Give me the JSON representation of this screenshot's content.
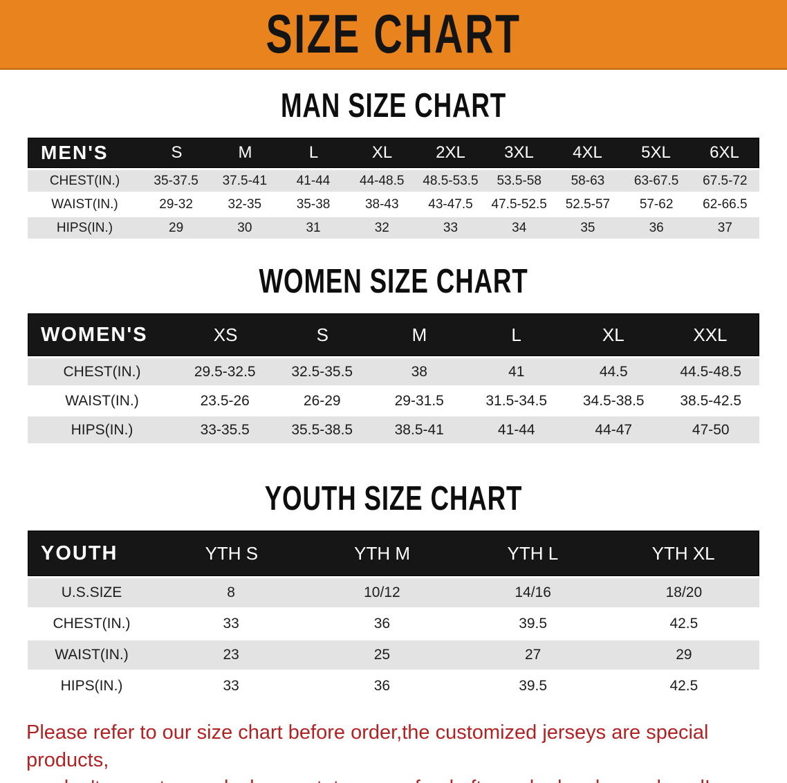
{
  "banner": {
    "title": "SIZE CHART"
  },
  "colors": {
    "banner_orange": "#E8831E",
    "table_header_black": "#161616",
    "row_stripe_gray": "#E3E3E3",
    "note_red": "#B22222"
  },
  "sections": [
    {
      "id": "men",
      "heading": "MAN SIZE CHART",
      "table": {
        "header_label": "MEN'S",
        "columns": [
          "S",
          "M",
          "L",
          "XL",
          "2XL",
          "3XL",
          "4XL",
          "5XL",
          "6XL"
        ],
        "rows": [
          {
            "label": "CHEST(IN.)",
            "shade": "gray",
            "values": [
              "35-37.5",
              "37.5-41",
              "41-44",
              "44-48.5",
              "48.5-53.5",
              "53.5-58",
              "58-63",
              "63-67.5",
              "67.5-72"
            ]
          },
          {
            "label": "WAIST(IN.)",
            "shade": "white",
            "values": [
              "29-32",
              "32-35",
              "35-38",
              "38-43",
              "43-47.5",
              "47.5-52.5",
              "52.5-57",
              "57-62",
              "62-66.5"
            ]
          },
          {
            "label": "HIPS(IN.)",
            "shade": "gray",
            "values": [
              "29",
              "30",
              "31",
              "32",
              "33",
              "34",
              "35",
              "36",
              "37"
            ]
          }
        ]
      }
    },
    {
      "id": "women",
      "heading": "WOMEN SIZE CHART",
      "table": {
        "header_label": "WOMEN'S",
        "columns": [
          "XS",
          "S",
          "M",
          "L",
          "XL",
          "XXL"
        ],
        "rows": [
          {
            "label": "CHEST(IN.)",
            "shade": "gray",
            "values": [
              "29.5-32.5",
              "32.5-35.5",
              "38",
              "41",
              "44.5",
              "44.5-48.5"
            ]
          },
          {
            "label": "WAIST(IN.)",
            "shade": "white",
            "values": [
              "23.5-26",
              "26-29",
              "29-31.5",
              "31.5-34.5",
              "34.5-38.5",
              "38.5-42.5"
            ]
          },
          {
            "label": "HIPS(IN.)",
            "shade": "gray",
            "values": [
              "33-35.5",
              "35.5-38.5",
              "38.5-41",
              "41-44",
              "44-47",
              "47-50"
            ]
          }
        ]
      }
    },
    {
      "id": "youth",
      "heading": "YOUTH SIZE CHART",
      "table": {
        "header_label": "YOUTH",
        "columns": [
          "YTH S",
          "YTH M",
          "YTH L",
          "YTH XL"
        ],
        "rows": [
          {
            "label": "U.S.SIZE",
            "shade": "gray",
            "values": [
              "8",
              "10/12",
              "14/16",
              "18/20"
            ]
          },
          {
            "label": "CHEST(IN.)",
            "shade": "white",
            "values": [
              "33",
              "36",
              "39.5",
              "42.5"
            ]
          },
          {
            "label": "WAIST(IN.)",
            "shade": "gray",
            "values": [
              "23",
              "25",
              "27",
              "29"
            ]
          },
          {
            "label": "HIPS(IN.)",
            "shade": "white",
            "values": [
              "33",
              "36",
              "39.5",
              "42.5"
            ]
          }
        ]
      }
    }
  ],
  "note": {
    "lines": [
      "Please refer to our size chart before order,the customized jerseys are special products,",
      "we don't accept cancel, change, teturn or refund after order has been placed!"
    ]
  }
}
